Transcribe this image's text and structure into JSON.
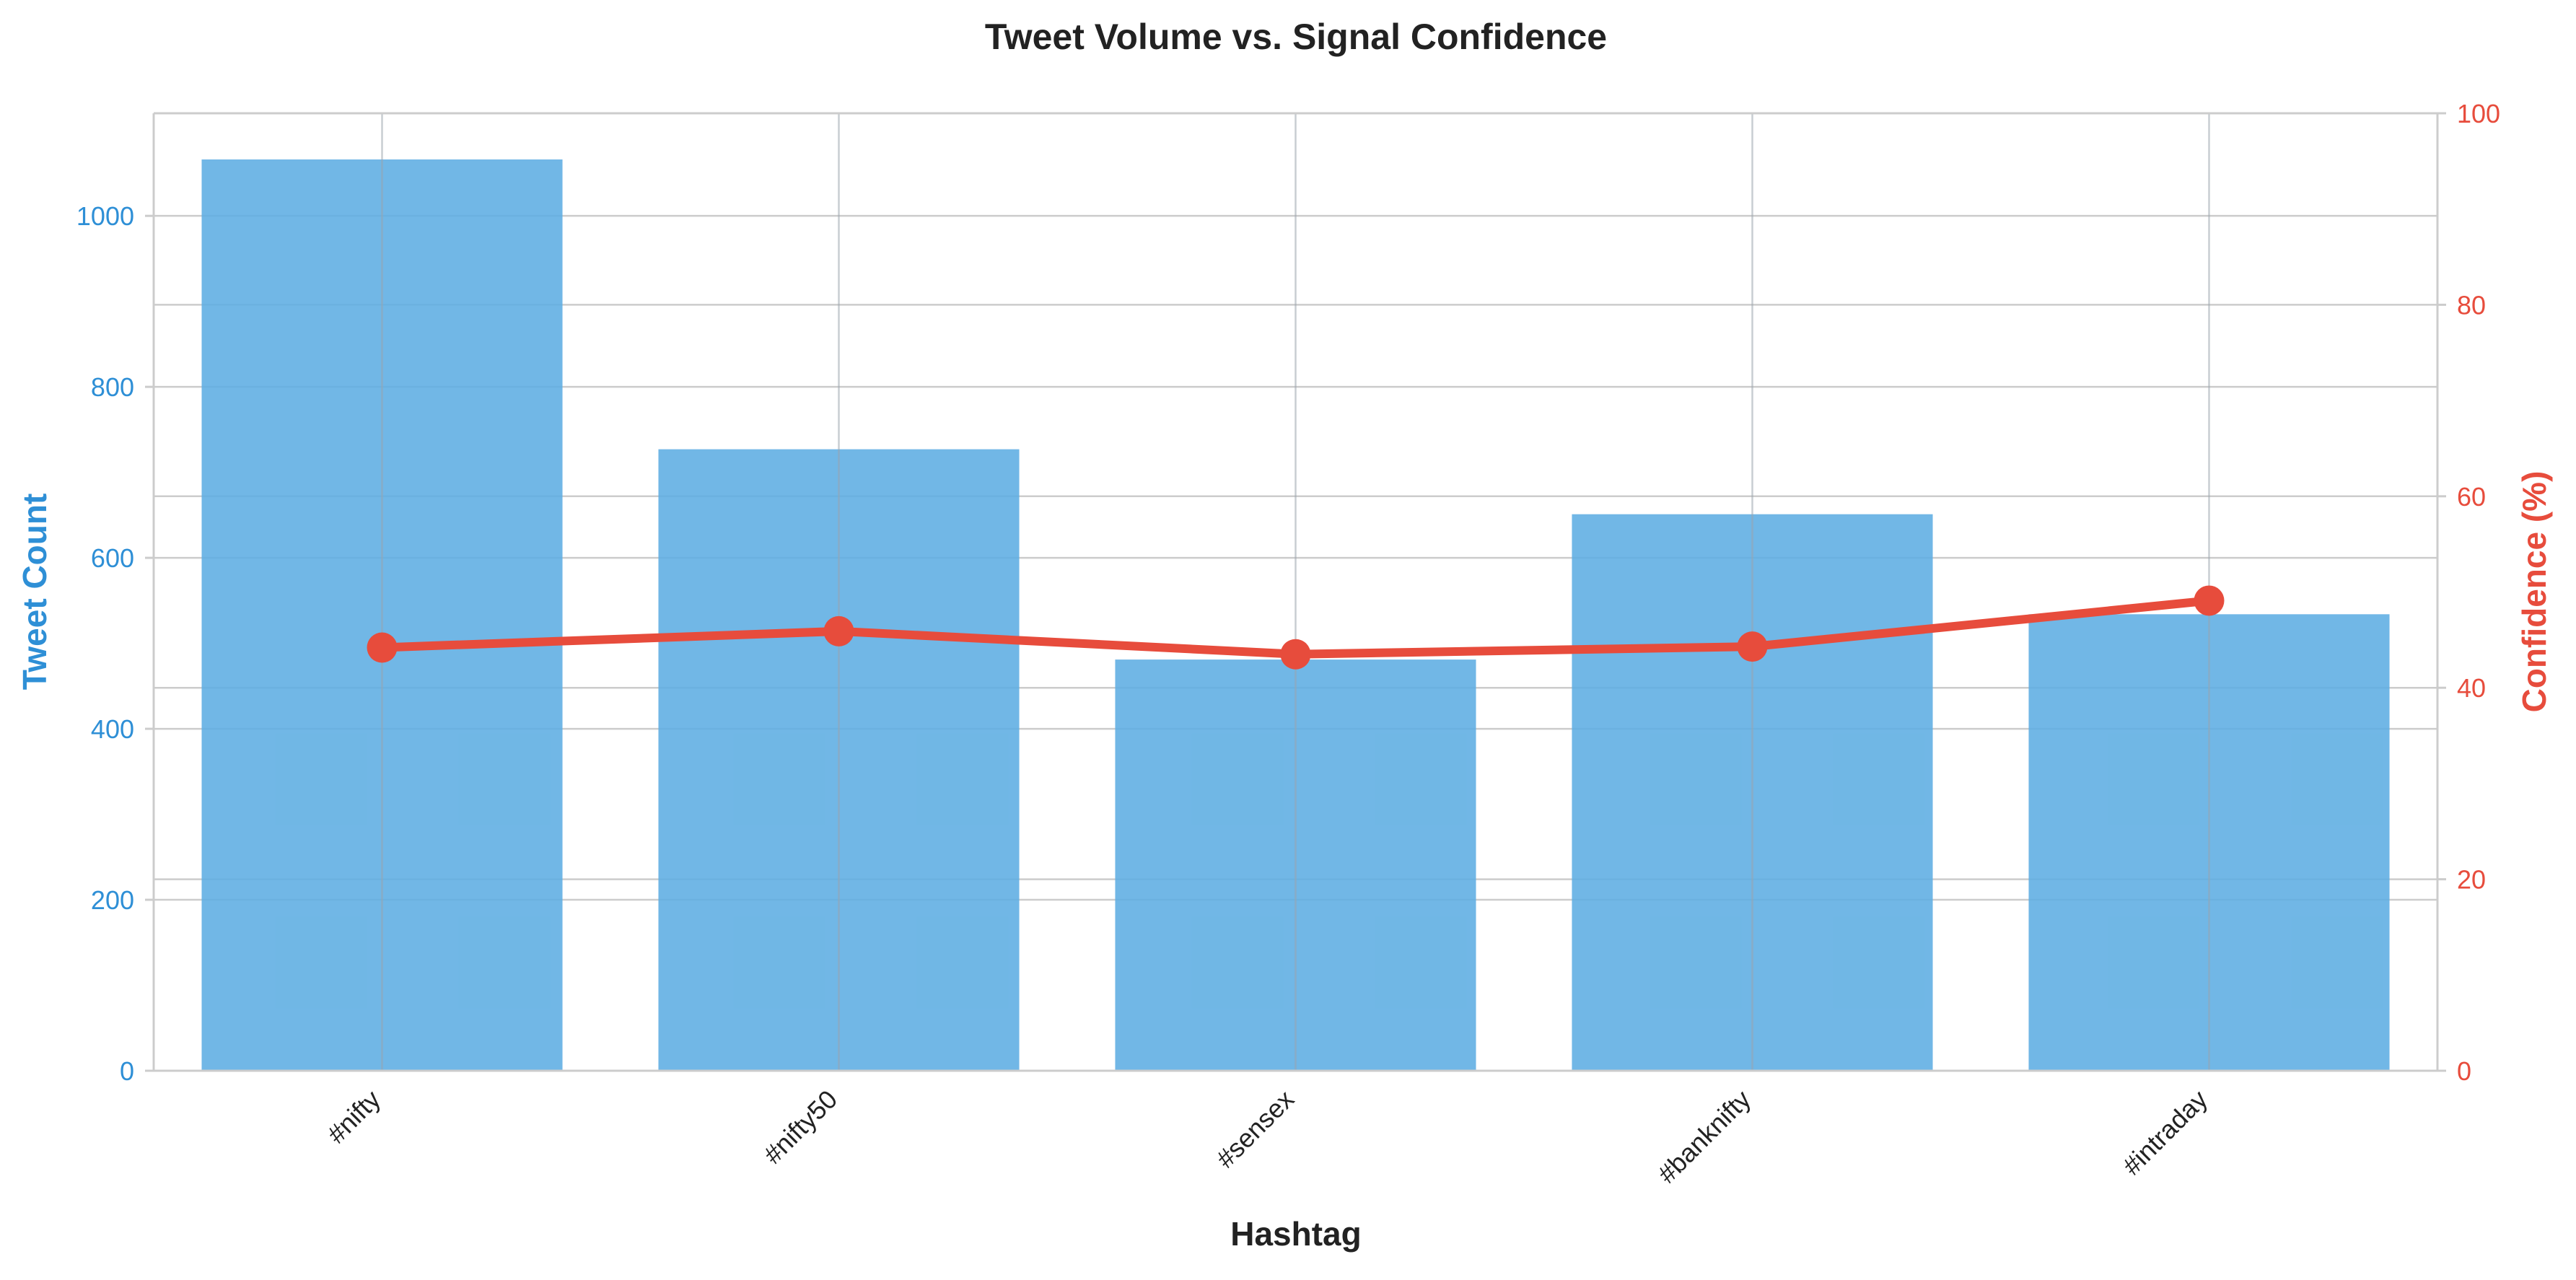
{
  "chart_data": {
    "type": "bar",
    "title": "Tweet Volume vs. Signal Confidence",
    "xlabel": "Hashtag",
    "ylabel": "Tweet Count",
    "ylabel_right": "Confidence (%)",
    "categories": [
      "#nifty",
      "#nifty50",
      "#sensex",
      "#banknifty",
      "#intraday"
    ],
    "series": [
      {
        "type": "bar",
        "axis": "left",
        "values": [
          1066,
          727,
          481,
          651,
          534
        ],
        "color": "#5DADE2"
      },
      {
        "type": "line",
        "axis": "right",
        "values": [
          44.2,
          45.9,
          43.5,
          44.3,
          49.1
        ],
        "color": "#E74C3C"
      }
    ],
    "ylim": [
      0,
      1120
    ],
    "ylim_right": [
      0,
      100
    ],
    "yticks": [
      "0",
      "200",
      "400",
      "600",
      "800",
      "1000"
    ],
    "yticks_right": [
      "0",
      "20",
      "40",
      "60",
      "80",
      "100"
    ],
    "grid": true,
    "left_axis_color": "#2E8FD6",
    "right_axis_color": "#E74C3C"
  }
}
